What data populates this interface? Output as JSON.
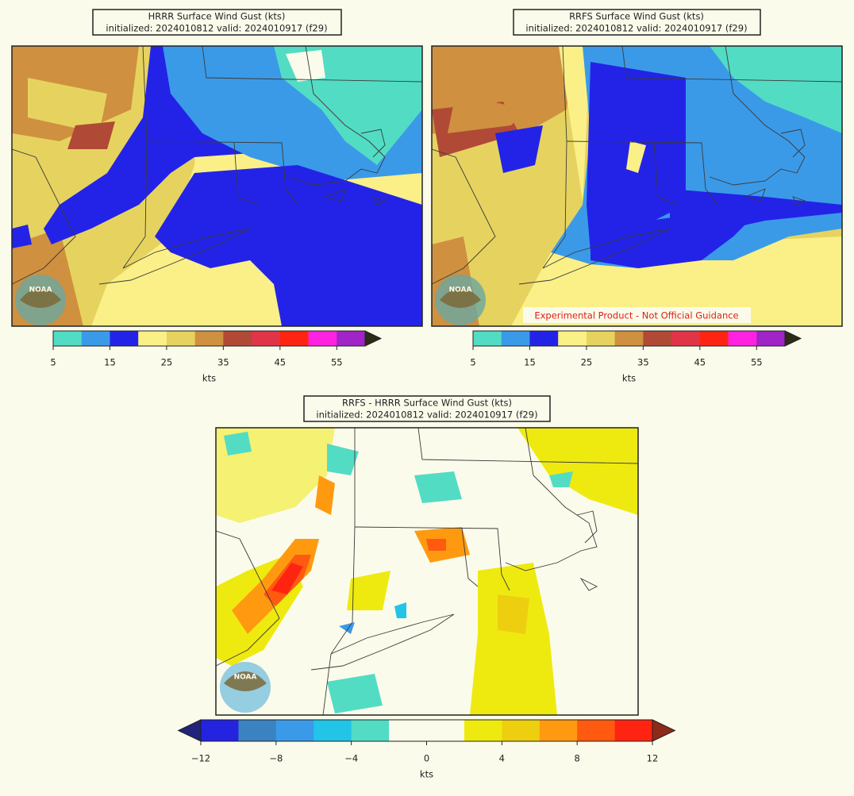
{
  "panels": [
    {
      "title": "HRRR Surface Wind Gust (kts)",
      "subtitle": "initialized: 2024010812 valid: 2024010917 (f29)"
    },
    {
      "title": "RRFS Surface Wind Gust (kts)",
      "subtitle": "initialized: 2024010812 valid: 2024010917 (f29)",
      "watermark": "Experimental Product - Not Official Guidance"
    },
    {
      "title": "RRFS - HRRR Surface Wind Gust (kts)",
      "subtitle": "initialized: 2024010812 valid: 2024010917 (f29)"
    }
  ],
  "logo_text": "NOAA",
  "colorbars": [
    {
      "label": "kts",
      "extend": "max",
      "over_color": "#2b2b16",
      "levels": [
        5,
        10,
        15,
        20,
        25,
        30,
        35,
        40,
        45,
        50,
        55,
        60
      ],
      "colors": [
        "#52dcc4",
        "#3a9ae8",
        "#2323e8",
        "#fbef88",
        "#e6d35f",
        "#cf9040",
        "#b04a36",
        "#e03448",
        "#ff2412",
        "#ff22e0",
        "#a024c8"
      ],
      "ticks": [
        5,
        15,
        25,
        35,
        45,
        55
      ]
    },
    {
      "label": "kts",
      "extend": "both",
      "under_color": "#22237a",
      "over_color": "#8e2a1a",
      "levels": [
        -12,
        -10,
        -8,
        -6,
        -4,
        -2,
        0,
        2,
        4,
        6,
        8,
        10,
        12
      ],
      "colors": [
        "#2323e0",
        "#3a82c0",
        "#3a9ae8",
        "#22c4e8",
        "#52dcc4",
        "#fbfbeb",
        "#fbfbeb",
        "#eeea10",
        "#eecf10",
        "#ff9a10",
        "#ff5a10",
        "#ff2412"
      ],
      "ticks": [
        {
          "value": -12,
          "label": "−12"
        },
        {
          "value": -8,
          "label": "−8"
        },
        {
          "value": -4,
          "label": "−4"
        },
        0,
        4,
        8,
        12
      ]
    }
  ]
}
